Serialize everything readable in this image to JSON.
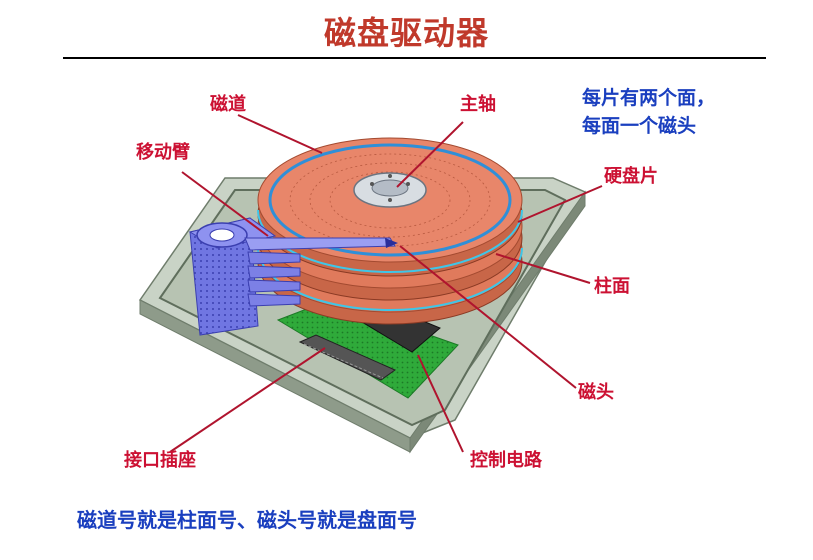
{
  "title": "磁盘驱动器",
  "labels": {
    "track": "磁道",
    "spindle": "主轴",
    "arm": "移动臂",
    "platter": "硬盘片",
    "cylinder": "柱面",
    "head": "磁头",
    "connector": "接口插座",
    "controller": "控制电路"
  },
  "note": {
    "line1": "每片有两个面，",
    "line2": "每面一个磁头"
  },
  "footer": "磁道号就是柱面号、磁头号就是盘面号",
  "colors": {
    "title": "#c0392b",
    "label": "#cc1133",
    "note": "#1a3fbf",
    "leader": "#b0142e",
    "platter": "#e8866a",
    "track_ring": "#2f8fd8",
    "base": "#a9b7a4",
    "arm": "#6b6fe0",
    "board": "#2faa3a"
  }
}
